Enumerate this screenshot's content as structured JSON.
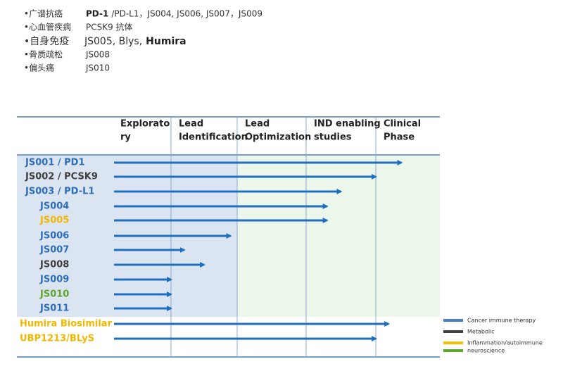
{
  "notes": [
    {
      "label": "•广谱抗癌",
      "bold": "PD-1",
      "text": "/PD-L1，JS004, JS006, JS007，JS009"
    },
    {
      "label": "•心血管疾病",
      "text": "PCSK9 抗体"
    },
    {
      "label": "•自身免疫",
      "text": "JS005, Blys,",
      "bold_after": "Humira"
    },
    {
      "label": "•骨质疏松",
      "text": "JS008"
    },
    {
      "label": "•偏头痛",
      "text": "JS010"
    }
  ],
  "pipeline": {
    "stages": [
      [
        "Explorato",
        "ry"
      ],
      [
        "Lead",
        "Identification"
      ],
      [
        "Lead",
        "Optimization"
      ],
      [
        "IND enabling",
        "studies"
      ],
      [
        "Clinical",
        "Phase"
      ]
    ],
    "rows": [
      {
        "label": "JS001 / PD1",
        "color": "#2e6fba",
        "progress": 4.4
      },
      {
        "label": "JS002 / PCSK9",
        "color": "#404040",
        "progress": 4.0
      },
      {
        "label": "JS003 / PD-L1",
        "color": "#2e6fba",
        "progress": 3.5
      },
      {
        "label": "JS004",
        "color": "#2e6fba",
        "progress": 3.3
      },
      {
        "label": "JS005",
        "color": "#f2b800",
        "progress": 3.3
      },
      {
        "label": "JS006",
        "color": "#2e6fba",
        "progress": 1.9
      },
      {
        "label": "JS007",
        "color": "#2e6fba",
        "progress": 1.2
      },
      {
        "label": "JS008",
        "color": "#404040",
        "progress": 1.5
      },
      {
        "label": "JS009",
        "color": "#2e6fba",
        "progress": 1.0
      },
      {
        "label": "JS010",
        "color": "#5ea32a",
        "progress": 1.0
      },
      {
        "label": "JS011",
        "color": "#2e6fba",
        "progress": 1.0
      },
      {
        "label": "Humira Biosimilar",
        "color": "#f2b800",
        "progress": 4.2
      },
      {
        "label": "UBP1213/BLyS",
        "color": "#f2b800",
        "progress": 4.0
      }
    ],
    "legend": [
      {
        "label": "Cancer immune therapy",
        "color": "#4a7ec4"
      },
      {
        "label": "Metabolic",
        "color": "#404040"
      },
      {
        "label": "Inflammation/autoimmune",
        "color": "#f2c200"
      },
      {
        "label": "neuroscience",
        "color": "#5ea32a"
      }
    ]
  }
}
